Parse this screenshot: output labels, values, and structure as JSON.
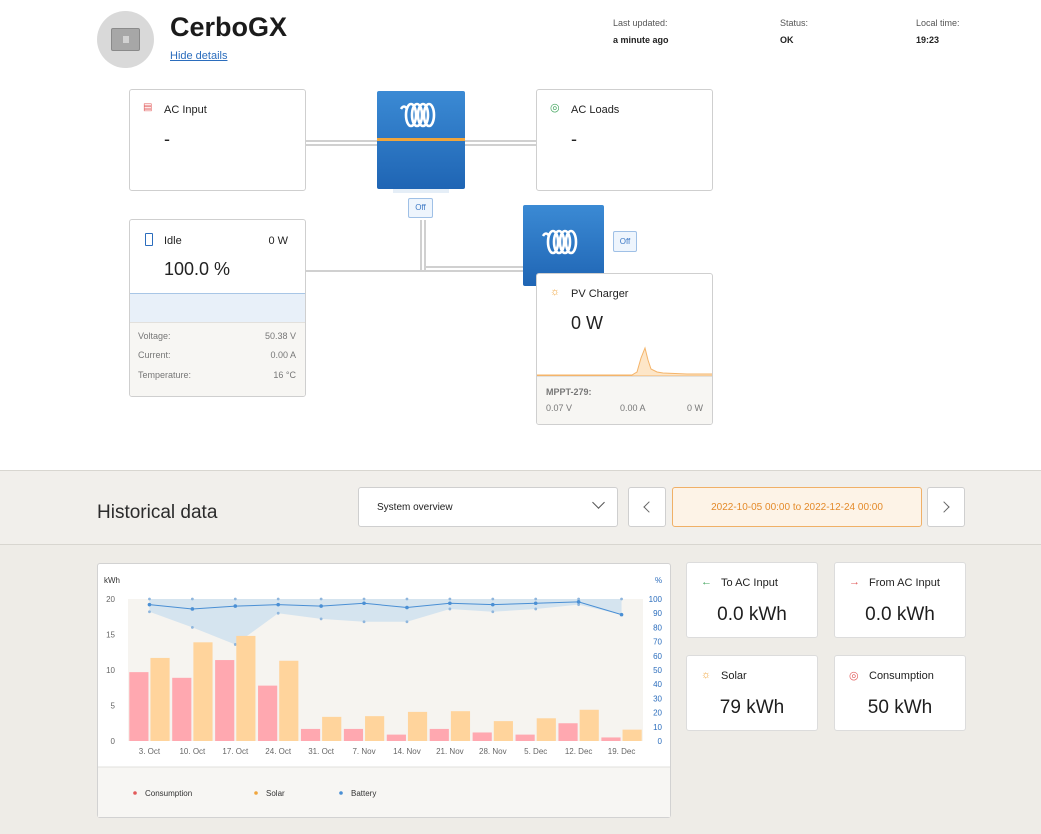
{
  "header": {
    "title": "CerboGX",
    "hide_details": "Hide details",
    "last_updated_label": "Last updated:",
    "last_updated_value": "a minute ago",
    "status_label": "Status:",
    "status_value": "OK",
    "local_time_label": "Local time:",
    "local_time_value": "19:23"
  },
  "ac_input": {
    "title": "AC Input",
    "value": "-"
  },
  "ac_loads": {
    "title": "AC Loads",
    "value": "-"
  },
  "inverter": {
    "off_label": "Off"
  },
  "mppt_device": {
    "off_label": "Off"
  },
  "battery": {
    "state": "Idle",
    "power": "0 W",
    "soc": "100.0 %",
    "soc_fraction": 1.0,
    "voltage_label": "Voltage:",
    "voltage": "50.38 V",
    "current_label": "Current:",
    "current": "0.00 A",
    "temperature_label": "Temperature:",
    "temperature": "16 °C"
  },
  "pv_charger": {
    "title": "PV Charger",
    "value": "0 W",
    "name": "MPPT-279:",
    "voltage": "0.07 V",
    "current": "0.00 A",
    "power": "0 W"
  },
  "historical": {
    "title": "Historical data",
    "select_value": "System overview",
    "date_range": "2022-10-05 00:00 to 2022-12-24 00:00"
  },
  "stats": {
    "to_ac_input": {
      "title": "To AC Input",
      "value": "0.0 kWh"
    },
    "from_ac_input": {
      "title": "From AC Input",
      "value": "0.0 kWh"
    },
    "solar": {
      "title": "Solar",
      "value": "79 kWh"
    },
    "consumption": {
      "title": "Consumption",
      "value": "50 kWh"
    }
  },
  "colors": {
    "consumption": "#ffa8b0",
    "solar": "#ffd49c",
    "battery": "#4a8fd4",
    "accent": "#2b6dbd"
  },
  "chart_data": {
    "type": "bar",
    "ylabel_left": "kWh",
    "ylabel_right": "%",
    "ylim_left": [
      0,
      20
    ],
    "ylim_right": [
      0,
      100
    ],
    "yticks_left": [
      "0",
      "5",
      "10",
      "15",
      "20"
    ],
    "yticks_right": [
      "0",
      "10",
      "20",
      "30",
      "40",
      "50",
      "60",
      "70",
      "80",
      "90",
      "100"
    ],
    "xticks": [
      "3. Oct",
      "10. Oct",
      "17. Oct",
      "24. Oct",
      "31. Oct",
      "7. Nov",
      "14. Nov",
      "21. Nov",
      "28. Nov",
      "5. Dec",
      "12. Dec",
      "19. Dec"
    ],
    "series": [
      {
        "name": "Consumption",
        "values": [
          9.7,
          8.9,
          11.4,
          7.8,
          1.7,
          1.7,
          0.9,
          1.7,
          1.2,
          0.9,
          2.5,
          0.5
        ]
      },
      {
        "name": "Solar",
        "values": [
          11.7,
          13.9,
          14.8,
          11.3,
          3.4,
          3.5,
          4.1,
          4.2,
          2.8,
          3.2,
          4.4,
          1.6
        ]
      },
      {
        "name": "Battery",
        "values": [
          96,
          93,
          95,
          96,
          95,
          97,
          94,
          97,
          96,
          97,
          98,
          89
        ]
      }
    ],
    "battery_min": [
      91,
      80,
      68,
      90,
      86,
      84,
      84,
      93,
      91,
      93,
      96,
      89
    ],
    "battery_max": [
      100,
      100,
      100,
      100,
      100,
      100,
      100,
      100,
      100,
      100,
      100,
      100
    ],
    "legend": [
      "Consumption",
      "Solar",
      "Battery"
    ],
    "legend_position": "bottom",
    "grid": false
  }
}
